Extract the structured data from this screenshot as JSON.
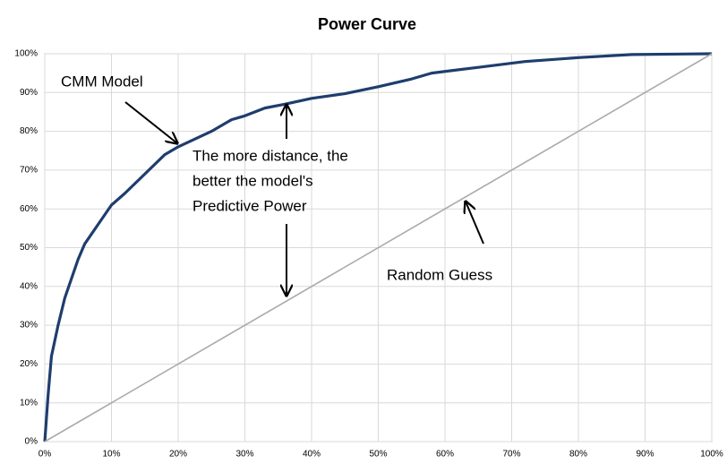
{
  "chart_data": {
    "type": "line",
    "title": "Power Curve",
    "series": [
      {
        "name": "CMM Model",
        "color": "#1f3d6e",
        "x": [
          0,
          0.5,
          1,
          2,
          3,
          4,
          5,
          6,
          8,
          10,
          12,
          15,
          18,
          20,
          25,
          28,
          30,
          33,
          36,
          40,
          45,
          50,
          55,
          58,
          65,
          72,
          80,
          88,
          100
        ],
        "values": [
          0,
          12,
          22,
          30,
          37,
          42,
          47,
          51,
          56,
          61,
          64,
          69,
          74,
          76,
          80,
          83,
          84,
          86,
          87,
          88.5,
          89.7,
          91.5,
          93.5,
          95,
          96.5,
          98,
          99,
          99.8,
          100
        ]
      },
      {
        "name": "Random Guess",
        "color": "#aaaaaa",
        "x": [
          0,
          100
        ],
        "values": [
          0,
          100
        ]
      }
    ],
    "annotations": [
      "The more distance, the",
      "better the model's",
      "Predictive Power"
    ],
    "xlim": [
      0,
      100
    ],
    "ylim": [
      0,
      100
    ],
    "xticks": [
      {
        "value": 0,
        "label": "0%"
      },
      {
        "value": 10,
        "label": "10%"
      },
      {
        "value": 20,
        "label": "20%"
      },
      {
        "value": 30,
        "label": "30%"
      },
      {
        "value": 40,
        "label": "40%"
      },
      {
        "value": 50,
        "label": "50%"
      },
      {
        "value": 60,
        "label": "60%"
      },
      {
        "value": 70,
        "label": "70%"
      },
      {
        "value": 80,
        "label": "80%"
      },
      {
        "value": 90,
        "label": "90%"
      },
      {
        "value": 100,
        "label": "100%"
      }
    ],
    "yticks": [
      {
        "value": 0,
        "label": "0%"
      },
      {
        "value": 10,
        "label": "10%"
      },
      {
        "value": 20,
        "label": "20%"
      },
      {
        "value": 30,
        "label": "30%"
      },
      {
        "value": 40,
        "label": "40%"
      },
      {
        "value": 50,
        "label": "50%"
      },
      {
        "value": 60,
        "label": "60%"
      },
      {
        "value": 70,
        "label": "70%"
      },
      {
        "value": 80,
        "label": "80%"
      },
      {
        "value": 90,
        "label": "90%"
      },
      {
        "value": 100,
        "label": "100%"
      }
    ],
    "grid": true
  }
}
